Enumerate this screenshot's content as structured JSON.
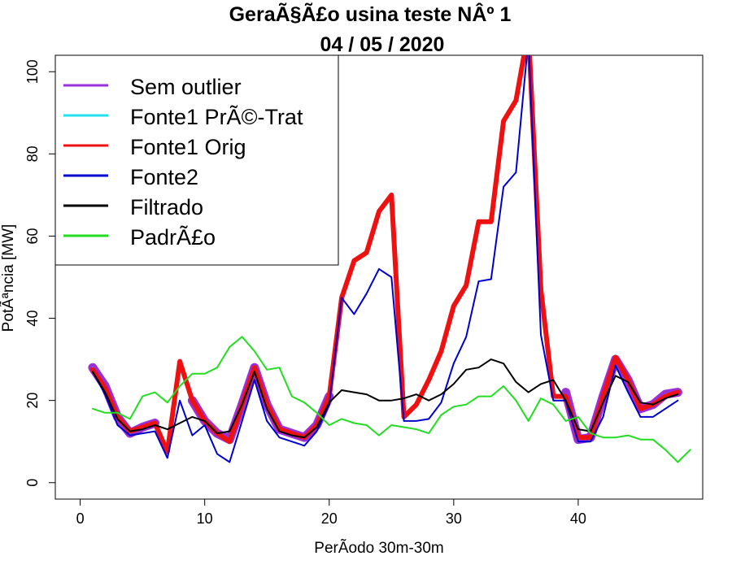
{
  "chart_data": {
    "type": "line",
    "title": "GeraÃ§Ã£o usina teste NÂº 1",
    "subtitle": "04 / 05 / 2020",
    "xlabel": "PerÃ­odo 30m-30m",
    "ylabel": "PotÃªncia [MW]",
    "xlim": [
      -2,
      50
    ],
    "ylim": [
      -4,
      104
    ],
    "xticks": [
      0,
      10,
      20,
      30,
      40
    ],
    "yticks": [
      0,
      20,
      40,
      60,
      80,
      100
    ],
    "legend_position": "top-left",
    "x": [
      1,
      2,
      3,
      4,
      5,
      6,
      7,
      8,
      9,
      10,
      11,
      12,
      13,
      14,
      15,
      16,
      17,
      18,
      19,
      20,
      21,
      22,
      23,
      24,
      25,
      26,
      27,
      28,
      29,
      30,
      31,
      32,
      33,
      34,
      35,
      36,
      37,
      38,
      39,
      40,
      41,
      42,
      43,
      44,
      45,
      46,
      47,
      48
    ],
    "series": [
      {
        "name": "Sem outlier",
        "color": "#9b30d9",
        "width": 11,
        "segments": [
          [
            [
              1,
              28
            ],
            [
              2,
              23.5
            ],
            [
              3,
              16
            ],
            [
              4,
              12
            ],
            [
              5,
              13.5
            ],
            [
              6,
              14.5
            ]
          ],
          [
            [
              9,
              20
            ],
            [
              10,
              15
            ],
            [
              11,
              12
            ],
            [
              12,
              10.5
            ],
            [
              13,
              19
            ],
            [
              14,
              28
            ],
            [
              15,
              19
            ],
            [
              16,
              13
            ],
            [
              17,
              12
            ],
            [
              18,
              11
            ],
            [
              19,
              14
            ],
            [
              20,
              21
            ]
          ],
          [
            [
              39,
              22
            ],
            [
              40,
              10.5
            ],
            [
              41,
              11
            ],
            [
              42,
              21
            ],
            [
              43,
              30
            ],
            [
              44,
              25
            ],
            [
              45,
              18
            ],
            [
              46,
              19
            ],
            [
              47,
              21.5
            ],
            [
              48,
              22
            ]
          ]
        ]
      },
      {
        "name": "Fonte1 PrÃ©-Trat",
        "color": "#22e0f0",
        "width": 2,
        "segments": [
          [
            [
              1,
              28
            ],
            [
              2,
              23
            ],
            [
              3,
              16
            ],
            [
              4,
              12
            ],
            [
              5,
              13.5
            ],
            [
              6,
              14.5
            ],
            [
              7,
              7.5
            ],
            [
              8,
              29.5
            ],
            [
              9,
              20
            ],
            [
              10,
              15
            ],
            [
              11,
              12
            ],
            [
              12,
              10
            ],
            [
              13,
              19
            ],
            [
              14,
              28
            ],
            [
              15,
              19
            ],
            [
              16,
              13
            ],
            [
              17,
              12
            ],
            [
              18,
              11
            ],
            [
              19,
              14
            ],
            [
              20,
              21
            ],
            [
              21,
              45
            ],
            [
              22,
              54
            ],
            [
              23,
              56
            ],
            [
              24,
              66
            ],
            [
              25,
              70
            ],
            [
              26,
              16
            ],
            [
              27,
              19
            ],
            [
              28,
              25
            ],
            [
              29,
              32
            ],
            [
              30,
              43
            ],
            [
              31,
              48
            ],
            [
              32,
              63.5
            ],
            [
              33,
              63.5
            ],
            [
              34,
              88
            ],
            [
              35,
              93
            ],
            [
              36,
              110
            ],
            [
              37,
              47
            ],
            [
              38,
              21
            ],
            [
              39,
              21
            ],
            [
              40,
              11
            ],
            [
              41,
              11
            ],
            [
              42,
              21
            ],
            [
              43,
              31
            ],
            [
              44,
              25
            ],
            [
              45,
              18
            ],
            [
              46,
              19
            ],
            [
              47,
              21.5
            ],
            [
              48,
              22
            ]
          ]
        ]
      },
      {
        "name": "Fonte1 Orig",
        "color": "#ee1111",
        "width": 6,
        "segments": [
          [
            [
              1,
              27.5
            ],
            [
              2,
              23
            ],
            [
              3,
              16
            ],
            [
              4,
              12.5
            ],
            [
              5,
              13.5
            ],
            [
              6,
              14.5
            ],
            [
              7,
              7.5
            ],
            [
              8,
              29.5
            ],
            [
              9,
              20
            ],
            [
              10,
              15
            ],
            [
              11,
              12
            ],
            [
              12,
              10
            ],
            [
              13,
              19
            ],
            [
              14,
              28
            ],
            [
              15,
              19
            ],
            [
              16,
              13
            ],
            [
              17,
              12
            ],
            [
              18,
              11
            ],
            [
              19,
              14
            ],
            [
              20,
              21
            ],
            [
              21,
              45
            ],
            [
              22,
              54
            ],
            [
              23,
              56
            ],
            [
              24,
              66
            ],
            [
              25,
              70
            ],
            [
              26,
              16
            ],
            [
              27,
              19
            ],
            [
              28,
              25
            ],
            [
              29,
              32
            ],
            [
              30,
              43
            ],
            [
              31,
              48
            ],
            [
              32,
              63.5
            ],
            [
              33,
              63.5
            ],
            [
              34,
              88
            ],
            [
              35,
              93
            ],
            [
              36,
              110
            ],
            [
              37,
              47
            ],
            [
              38,
              21
            ],
            [
              39,
              21
            ],
            [
              40,
              11
            ],
            [
              41,
              11
            ],
            [
              42,
              21
            ],
            [
              43,
              30.5
            ],
            [
              44,
              25
            ],
            [
              45,
              18
            ],
            [
              46,
              19
            ],
            [
              47,
              21
            ],
            [
              48,
              22
            ]
          ]
        ]
      },
      {
        "name": "Fonte2",
        "color": "#0000cc",
        "width": 2,
        "segments": [
          [
            [
              1,
              27
            ],
            [
              2,
              21.5
            ],
            [
              3,
              14
            ],
            [
              4,
              11.5
            ],
            [
              5,
              12
            ],
            [
              6,
              12.5
            ],
            [
              7,
              6
            ],
            [
              8,
              20
            ],
            [
              9,
              11.5
            ],
            [
              10,
              14
            ],
            [
              11,
              7
            ],
            [
              12,
              5
            ],
            [
              13,
              15
            ],
            [
              14,
              25
            ],
            [
              15,
              15
            ],
            [
              16,
              11
            ],
            [
              17,
              10
            ],
            [
              18,
              9
            ],
            [
              19,
              12.5
            ],
            [
              20,
              19
            ],
            [
              21,
              45
            ],
            [
              22,
              41
            ],
            [
              23,
              46
            ],
            [
              24,
              52
            ],
            [
              25,
              50
            ],
            [
              26,
              15
            ],
            [
              27,
              15
            ],
            [
              28,
              15.5
            ],
            [
              29,
              19.5
            ],
            [
              30,
              29
            ],
            [
              31,
              35.5
            ],
            [
              32,
              49
            ],
            [
              33,
              49.5
            ],
            [
              34,
              72
            ],
            [
              35,
              75.5
            ],
            [
              36,
              108
            ],
            [
              37,
              36
            ],
            [
              38,
              20
            ],
            [
              39,
              20
            ],
            [
              40,
              10
            ],
            [
              41,
              10
            ],
            [
              42,
              16
            ],
            [
              43,
              28.5
            ],
            [
              44,
              22
            ],
            [
              45,
              16
            ],
            [
              46,
              16
            ],
            [
              47,
              18
            ],
            [
              48,
              20
            ]
          ]
        ]
      },
      {
        "name": "Filtrado",
        "color": "#000000",
        "width": 2,
        "segments": [
          [
            [
              1,
              27
            ],
            [
              2,
              22
            ],
            [
              3,
              15.5
            ],
            [
              4,
              12.5
            ],
            [
              5,
              13
            ],
            [
              6,
              14
            ],
            [
              7,
              13
            ],
            [
              8,
              14.5
            ],
            [
              9,
              16
            ],
            [
              10,
              15
            ],
            [
              11,
              12
            ],
            [
              12,
              12.5
            ],
            [
              13,
              19
            ],
            [
              14,
              27
            ],
            [
              15,
              18
            ],
            [
              16,
              12.5
            ],
            [
              17,
              11.5
            ],
            [
              18,
              11
            ],
            [
              19,
              13.5
            ],
            [
              20,
              19.5
            ],
            [
              21,
              22.5
            ],
            [
              22,
              22
            ],
            [
              23,
              21.5
            ],
            [
              24,
              20
            ],
            [
              25,
              20
            ],
            [
              26,
              20.5
            ],
            [
              27,
              21.5
            ],
            [
              28,
              20
            ],
            [
              29,
              21.5
            ],
            [
              30,
              24
            ],
            [
              31,
              27.5
            ],
            [
              32,
              28
            ],
            [
              33,
              30
            ],
            [
              34,
              29
            ],
            [
              35,
              24.5
            ],
            [
              36,
              22
            ],
            [
              37,
              24
            ],
            [
              38,
              25
            ],
            [
              39,
              20
            ],
            [
              40,
              13
            ],
            [
              41,
              12.5
            ],
            [
              42,
              19.5
            ],
            [
              43,
              26
            ],
            [
              44,
              24.5
            ],
            [
              45,
              19.5
            ],
            [
              46,
              19
            ],
            [
              47,
              20.5
            ],
            [
              48,
              21.5
            ]
          ]
        ]
      },
      {
        "name": "PadrÃ£o",
        "color": "#22dd22",
        "width": 2,
        "segments": [
          [
            [
              1,
              18
            ],
            [
              2,
              17
            ],
            [
              3,
              17
            ],
            [
              4,
              15.5
            ],
            [
              5,
              21
            ],
            [
              6,
              22
            ],
            [
              7,
              19.5
            ],
            [
              8,
              23.5
            ],
            [
              9,
              26.5
            ],
            [
              10,
              26.5
            ],
            [
              11,
              28
            ],
            [
              12,
              33
            ],
            [
              13,
              35.5
            ],
            [
              14,
              32
            ],
            [
              15,
              27.5
            ],
            [
              16,
              28
            ],
            [
              17,
              21
            ],
            [
              18,
              19.5
            ],
            [
              19,
              17
            ],
            [
              20,
              14
            ],
            [
              21,
              15.5
            ],
            [
              22,
              14.5
            ],
            [
              23,
              14
            ],
            [
              24,
              11.5
            ],
            [
              25,
              14
            ],
            [
              26,
              13.5
            ],
            [
              27,
              13
            ],
            [
              28,
              12
            ],
            [
              29,
              16.5
            ],
            [
              30,
              18.5
            ],
            [
              31,
              19
            ],
            [
              32,
              21
            ],
            [
              33,
              21
            ],
            [
              34,
              23.5
            ],
            [
              35,
              20
            ],
            [
              36,
              15
            ],
            [
              37,
              20.5
            ],
            [
              38,
              19
            ],
            [
              39,
              15
            ],
            [
              40,
              16
            ],
            [
              41,
              12
            ],
            [
              42,
              11
            ],
            [
              43,
              11
            ],
            [
              44,
              11.5
            ],
            [
              45,
              10.5
            ],
            [
              46,
              10.5
            ],
            [
              47,
              8
            ],
            [
              48,
              5
            ],
            [
              49,
              8
            ]
          ]
        ]
      }
    ]
  }
}
